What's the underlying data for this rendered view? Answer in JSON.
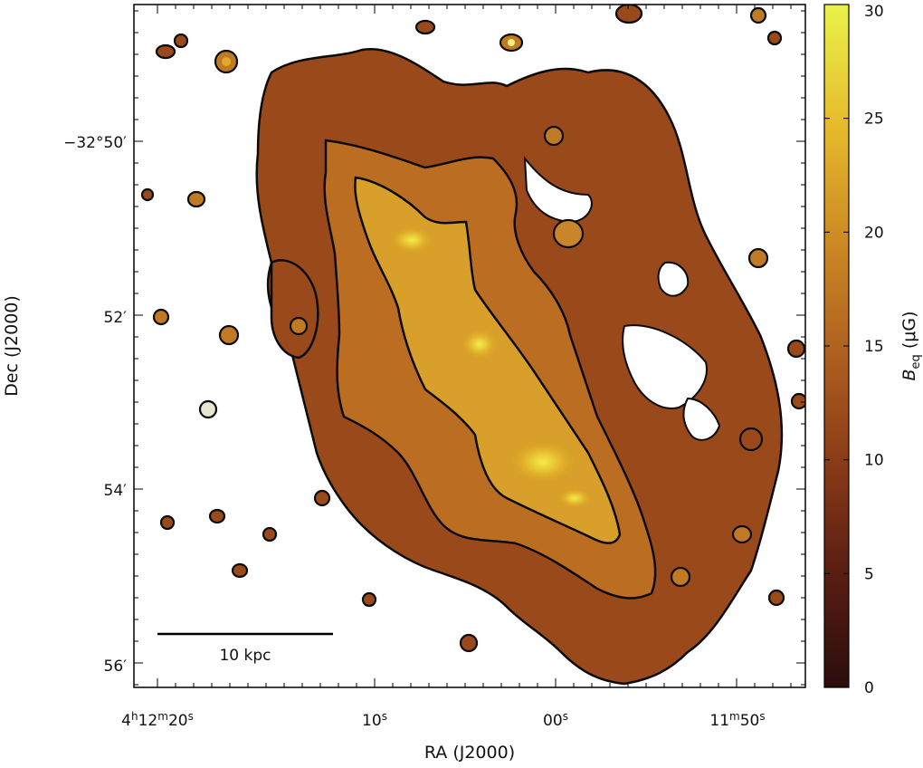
{
  "chart_data": {
    "type": "heatmap",
    "title": "",
    "xlabel": "RA (J2000)",
    "ylabel": "Dec (J2000)",
    "x_ticks": [
      {
        "h": "4",
        "m": "12",
        "s": "20"
      },
      {
        "h": "",
        "m": "",
        "s": "10"
      },
      {
        "h": "",
        "m": "",
        "s": "00"
      },
      {
        "h": "",
        "m": "11",
        "s": "50"
      }
    ],
    "y_ticks": [
      "−32°50′",
      "52′",
      "54′",
      "56′"
    ],
    "colorbar": {
      "label_main": "B",
      "label_sub": "eq",
      "label_unit": " (μG)",
      "min": 0,
      "max": 30,
      "ticks": [
        0,
        5,
        10,
        15,
        20,
        25,
        30
      ],
      "colormap": [
        "#2a0d0d",
        "#5a1e12",
        "#8a3b17",
        "#b0631f",
        "#cf8e24",
        "#e6bd2c",
        "#eaf24a"
      ]
    },
    "scale_bar": {
      "label": "10 kpc"
    },
    "contour_levels_uG": [
      5,
      10,
      20
    ],
    "colors": {
      "mask_background": "#ffffff",
      "contour": "#0a0a0a"
    }
  }
}
